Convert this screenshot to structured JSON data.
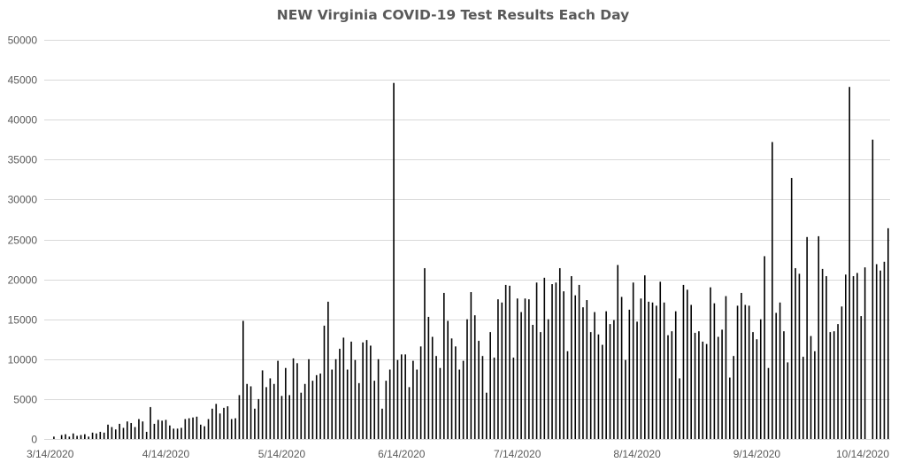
{
  "chart_data": {
    "type": "bar",
    "title": "NEW Virginia COVID-19 Test Results Each Day",
    "xlabel": "",
    "ylabel": "",
    "ylim": [
      0,
      50000
    ],
    "y_ticks": [
      0,
      5000,
      10000,
      15000,
      20000,
      25000,
      30000,
      35000,
      40000,
      45000,
      50000
    ],
    "y_tick_labels": [
      "0",
      "5000",
      "10000",
      "15000",
      "20000",
      "25000",
      "30000",
      "35000",
      "40000",
      "45000",
      "50000"
    ],
    "x_ticks": [
      {
        "day": 0,
        "label": "3/14/2020"
      },
      {
        "day": 31,
        "label": "4/14/2020"
      },
      {
        "day": 61,
        "label": "5/14/2020"
      },
      {
        "day": 92,
        "label": "6/14/2020"
      },
      {
        "day": 122,
        "label": "7/14/2020"
      },
      {
        "day": 153,
        "label": "8/14/2020"
      },
      {
        "day": 184,
        "label": "9/14/2020"
      },
      {
        "day": 214,
        "label": "10/14/2020"
      }
    ],
    "grid": true,
    "legend": "none",
    "bar_color": "#000000",
    "x_start": "3/14/2020",
    "values": [
      0,
      0,
      300,
      0,
      500,
      600,
      300,
      700,
      400,
      500,
      600,
      300,
      800,
      700,
      900,
      800,
      1800,
      1500,
      1200,
      1900,
      1400,
      2200,
      2000,
      1500,
      2500,
      2200,
      900,
      4000,
      1900,
      2400,
      2300,
      2400,
      1700,
      1300,
      1300,
      1400,
      2500,
      2600,
      2700,
      2800,
      1800,
      1600,
      2500,
      3800,
      4400,
      3200,
      3900,
      4100,
      2500,
      2600,
      5500,
      14800,
      6900,
      6600,
      3800,
      5000,
      8600,
      6500,
      7600,
      6900,
      9800,
      5400,
      8900,
      5500,
      10100,
      9500,
      5800,
      6900,
      10000,
      7300,
      8000,
      8200,
      14200,
      17200,
      8700,
      10000,
      11300,
      12700,
      8700,
      12200,
      9900,
      7000,
      12100,
      12400,
      11700,
      7300,
      10000,
      3800,
      7300,
      8700,
      44600,
      9900,
      10600,
      10600,
      6500,
      9800,
      8700,
      11600,
      21400,
      15300,
      12800,
      10400,
      8900,
      18300,
      14800,
      12600,
      11600,
      8700,
      9800,
      15000,
      18400,
      15500,
      12300,
      10400,
      5800,
      13400,
      10200,
      17500,
      17100,
      19300,
      19200,
      10200,
      17600,
      15900,
      17600,
      17500,
      14300,
      19600,
      13400,
      20200,
      15000,
      19400,
      19600,
      21400,
      18500,
      11000,
      20400,
      18000,
      19300,
      16500,
      17400,
      13400,
      15900,
      13100,
      11800,
      16000,
      14400,
      14900,
      21800,
      17800,
      9900,
      16200,
      19600,
      14700,
      17600,
      20500,
      17200,
      17100,
      16700,
      19700,
      17100,
      13000,
      13500,
      16000,
      7600,
      19300,
      18700,
      16800,
      13300,
      13500,
      12200,
      11900,
      19000,
      17000,
      12800,
      13700,
      17900,
      7700,
      10400,
      16700,
      18300,
      16800,
      16700,
      13400,
      12500,
      15000,
      22900,
      8900,
      37200,
      15800,
      17100,
      13500,
      9600,
      32700,
      21400,
      20700,
      10300,
      25300,
      12900,
      11000,
      25400,
      21300,
      20400,
      13400,
      13500,
      14400,
      16600,
      20600,
      44100,
      20400,
      20800,
      15400,
      21500,
      0,
      37500,
      21900,
      21100,
      22200,
      26400
    ]
  }
}
